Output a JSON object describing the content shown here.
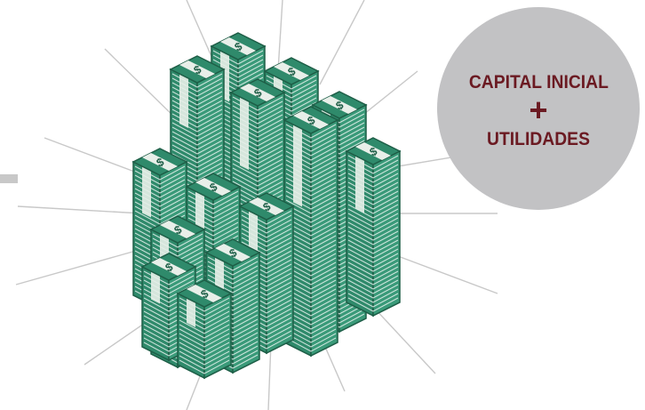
{
  "badge": {
    "line1": "CAPITAL INICIAL",
    "operator": "+",
    "line2": "UTILIDADES",
    "background_color": "#c2c2c4",
    "text_color": "#6b1a22"
  },
  "illustration": {
    "subject": "stacks-of-money",
    "bill_symbol": "$",
    "bill_color": "#2f8a6b",
    "bill_outline_color": "#1e5e47",
    "ray_color": "#c8c8c8"
  }
}
